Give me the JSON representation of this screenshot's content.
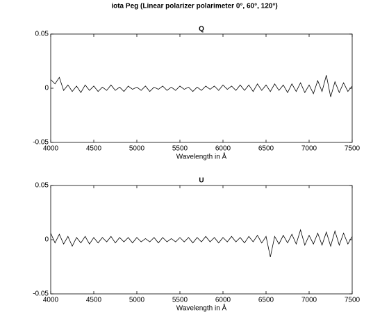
{
  "title": "iota Peg (Linear polarizer polarimeter 0°, 60°, 120°)",
  "chart_data": [
    {
      "type": "line",
      "title": "Q",
      "x_label": "Wavelength in Å",
      "x": [
        4000,
        4050,
        4100,
        4150,
        4200,
        4250,
        4300,
        4350,
        4400,
        4450,
        4500,
        4550,
        4600,
        4650,
        4700,
        4750,
        4800,
        4850,
        4900,
        4950,
        5000,
        5050,
        5100,
        5150,
        5200,
        5250,
        5300,
        5350,
        5400,
        5450,
        5500,
        5550,
        5600,
        5650,
        5700,
        5750,
        5800,
        5850,
        5900,
        5950,
        6000,
        6050,
        6100,
        6150,
        6200,
        6250,
        6300,
        6350,
        6400,
        6450,
        6500,
        6550,
        6600,
        6650,
        6700,
        6750,
        6800,
        6850,
        6900,
        6950,
        7000,
        7050,
        7100,
        7150,
        7200,
        7250,
        7300,
        7350,
        7400,
        7450,
        7500
      ],
      "series": [
        {
          "name": "Q",
          "color": "#000000",
          "values": [
            0.008,
            0.004,
            0.01,
            -0.002,
            0.003,
            -0.003,
            0.002,
            -0.004,
            0.003,
            -0.002,
            0.002,
            -0.003,
            0.001,
            -0.002,
            0.003,
            -0.002,
            0.001,
            -0.003,
            0.002,
            -0.001,
            0.001,
            -0.002,
            0.002,
            -0.003,
            0.001,
            -0.001,
            0.002,
            -0.002,
            0.001,
            -0.002,
            0.002,
            -0.001,
            0.001,
            -0.003,
            0.001,
            -0.002,
            0.002,
            -0.001,
            0.002,
            -0.002,
            0.003,
            -0.001,
            0.002,
            -0.002,
            0.003,
            -0.002,
            0.003,
            -0.003,
            0.004,
            -0.002,
            0.003,
            -0.003,
            0.004,
            -0.002,
            0.003,
            -0.004,
            0.004,
            -0.003,
            0.005,
            -0.004,
            0.003,
            -0.005,
            0.007,
            -0.003,
            0.012,
            -0.008,
            0.006,
            -0.004,
            0.005,
            -0.003,
            0.002
          ]
        }
      ],
      "xlim": [
        4000,
        7500
      ],
      "xticks": [
        4000,
        4500,
        5000,
        5500,
        6000,
        6500,
        7000,
        7500
      ],
      "ylim": [
        -0.05,
        0.05
      ],
      "yticks": [
        -0.05,
        0,
        0.05
      ]
    },
    {
      "type": "line",
      "title": "U",
      "x_label": "Wavelength in Å",
      "x": [
        4000,
        4050,
        4100,
        4150,
        4200,
        4250,
        4300,
        4350,
        4400,
        4450,
        4500,
        4550,
        4600,
        4650,
        4700,
        4750,
        4800,
        4850,
        4900,
        4950,
        5000,
        5050,
        5100,
        5150,
        5200,
        5250,
        5300,
        5350,
        5400,
        5450,
        5500,
        5550,
        5600,
        5650,
        5700,
        5750,
        5800,
        5850,
        5900,
        5950,
        6000,
        6050,
        6100,
        6150,
        6200,
        6250,
        6300,
        6350,
        6400,
        6450,
        6500,
        6550,
        6600,
        6650,
        6700,
        6750,
        6800,
        6850,
        6900,
        6950,
        7000,
        7050,
        7100,
        7150,
        7200,
        7250,
        7300,
        7350,
        7400,
        7450,
        7500
      ],
      "series": [
        {
          "name": "U",
          "color": "#000000",
          "values": [
            0.006,
            -0.003,
            0.005,
            -0.004,
            0.003,
            -0.006,
            0.002,
            -0.003,
            0.003,
            -0.004,
            0.002,
            -0.003,
            0.002,
            -0.002,
            0.003,
            -0.003,
            0.002,
            -0.002,
            0.002,
            -0.003,
            0.002,
            -0.002,
            0.001,
            -0.002,
            0.002,
            -0.003,
            0.002,
            -0.002,
            0.001,
            -0.002,
            0.002,
            -0.002,
            0.002,
            -0.003,
            0.002,
            -0.002,
            0.003,
            -0.002,
            0.002,
            -0.003,
            0.002,
            -0.002,
            0.003,
            -0.002,
            0.002,
            -0.003,
            0.003,
            -0.002,
            0.004,
            -0.003,
            0.003,
            -0.016,
            0.003,
            -0.004,
            0.004,
            -0.003,
            0.005,
            -0.004,
            0.009,
            -0.005,
            0.004,
            -0.004,
            0.006,
            -0.005,
            0.007,
            -0.006,
            0.008,
            -0.005,
            0.006,
            -0.004,
            0.003
          ]
        }
      ],
      "xlim": [
        4000,
        7500
      ],
      "xticks": [
        4000,
        4500,
        5000,
        5500,
        6000,
        6500,
        7000,
        7500
      ],
      "ylim": [
        -0.05,
        0.05
      ],
      "yticks": [
        -0.05,
        0,
        0.05
      ]
    }
  ]
}
